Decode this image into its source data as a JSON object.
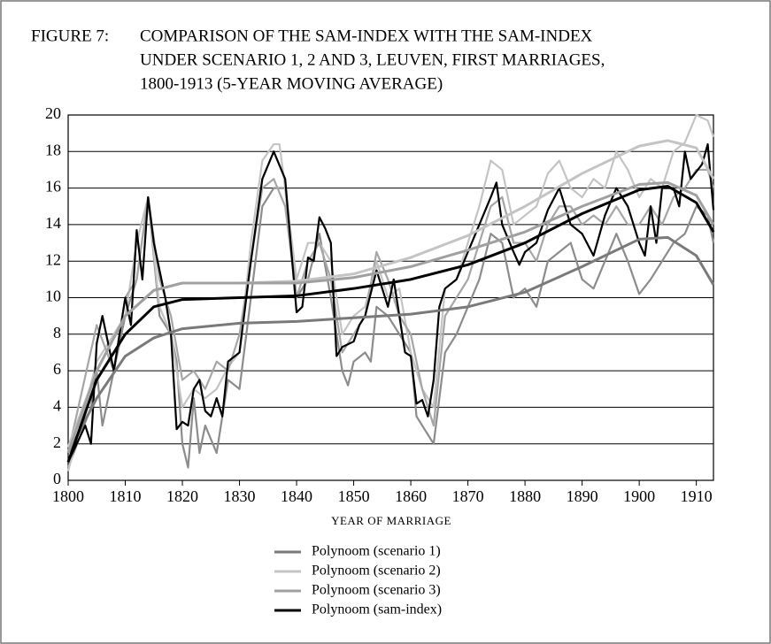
{
  "chart_data": {
    "type": "line",
    "figure_label": "FIGURE 7:",
    "title": [
      "COMPARISON OF THE SAM-INDEX WITH THE SAM-INDEX",
      "UNDER SCENARIO 1, 2 AND 3, LEUVEN, FIRST MARRIAGES,",
      "1800-1913 (5-YEAR MOVING AVERAGE)"
    ],
    "xlabel": "YEAR OF MARRIAGE",
    "xlim": [
      1800,
      1913
    ],
    "xticks": [
      1800,
      1810,
      1820,
      1830,
      1840,
      1850,
      1860,
      1870,
      1880,
      1890,
      1900,
      1910
    ],
    "ylim": [
      0,
      20
    ],
    "yticks": [
      0,
      2,
      4,
      6,
      8,
      10,
      12,
      14,
      16,
      18,
      20
    ],
    "grid": true,
    "series": [
      {
        "color": "#8c8c8c",
        "x": [
          1800,
          1804,
          1805,
          1806,
          1808,
          1810,
          1812,
          1814,
          1816,
          1818,
          1819,
          1820,
          1821,
          1822,
          1823,
          1824,
          1826,
          1828,
          1830,
          1832,
          1834,
          1836,
          1838,
          1840,
          1842,
          1844,
          1846,
          1848,
          1849,
          1850,
          1852,
          1853,
          1854,
          1856,
          1858,
          1860,
          1861,
          1862,
          1864,
          1866,
          1868,
          1870,
          1872,
          1874,
          1876,
          1878,
          1880,
          1882,
          1884,
          1886,
          1888,
          1890,
          1892,
          1894,
          1896,
          1898,
          1900,
          1902,
          1904,
          1906,
          1908,
          1910,
          1912,
          1913
        ],
        "values": [
          0.7,
          4,
          6,
          3,
          6,
          9,
          11,
          15.5,
          9,
          8,
          6.5,
          2,
          0.7,
          4.5,
          1.5,
          3,
          1.5,
          5.5,
          5,
          10,
          15,
          16,
          16,
          10,
          11,
          13.5,
          10,
          6,
          5.2,
          6.5,
          7,
          6.5,
          9.5,
          9,
          8,
          7,
          3.5,
          3,
          2,
          7,
          8,
          9.5,
          11,
          13.5,
          13,
          10,
          10.5,
          9.5,
          12,
          12.5,
          13,
          11,
          10.5,
          12,
          13.5,
          12,
          10.2,
          11,
          12,
          13,
          13.5,
          15,
          14.5,
          13
        ]
      },
      {
        "color": "#c4c4c4",
        "x": [
          1800,
          1805,
          1810,
          1812,
          1814,
          1816,
          1818,
          1820,
          1822,
          1824,
          1826,
          1828,
          1830,
          1832,
          1834,
          1836,
          1837,
          1838,
          1840,
          1842,
          1844,
          1846,
          1848,
          1850,
          1852,
          1854,
          1856,
          1858,
          1860,
          1862,
          1864,
          1866,
          1868,
          1870,
          1872,
          1874,
          1876,
          1878,
          1880,
          1882,
          1884,
          1886,
          1888,
          1890,
          1892,
          1894,
          1896,
          1898,
          1900,
          1902,
          1904,
          1906,
          1908,
          1910,
          1912,
          1913
        ],
        "values": [
          0.5,
          6.5,
          9,
          13,
          15.5,
          9.5,
          8,
          4,
          5,
          4.5,
          5,
          6.2,
          7,
          13,
          17.5,
          18.4,
          18.4,
          16,
          11,
          13,
          13,
          12,
          8,
          9,
          9.5,
          12,
          10,
          10.5,
          7,
          5,
          4,
          10.5,
          11,
          13,
          15,
          17.5,
          17,
          14,
          14.5,
          15,
          16.8,
          17.5,
          16,
          15.5,
          16.5,
          16,
          18,
          17,
          15.5,
          16.5,
          16,
          18,
          18.5,
          20,
          19.7,
          18.8
        ]
      },
      {
        "color": "#a6a6a6",
        "x": [
          1800,
          1805,
          1808,
          1810,
          1812,
          1814,
          1816,
          1818,
          1820,
          1822,
          1824,
          1826,
          1828,
          1830,
          1832,
          1834,
          1836,
          1838,
          1840,
          1842,
          1844,
          1846,
          1848,
          1850,
          1852,
          1854,
          1856,
          1858,
          1860,
          1862,
          1864,
          1866,
          1868,
          1870,
          1872,
          1874,
          1876,
          1878,
          1880,
          1882,
          1884,
          1886,
          1888,
          1890,
          1892,
          1894,
          1896,
          1898,
          1900,
          1902,
          1904,
          1906,
          1908,
          1910,
          1912,
          1913
        ],
        "values": [
          1.5,
          8.5,
          6,
          10,
          11,
          15.5,
          11,
          9,
          5.5,
          6,
          5,
          6.5,
          6,
          8,
          12,
          16,
          16.5,
          15,
          10,
          12,
          13,
          11,
          7,
          8,
          9,
          12.5,
          11,
          9,
          8,
          5,
          3,
          9,
          10,
          11,
          13,
          15,
          15.5,
          13,
          13,
          12,
          14,
          15,
          15,
          14,
          14.5,
          14,
          15,
          14,
          14,
          15,
          14,
          15.5,
          16,
          17,
          17,
          16
        ]
      },
      {
        "color": "#000000",
        "x": [
          1800,
          1803,
          1804,
          1805,
          1806,
          1808,
          1810,
          1811,
          1812,
          1813,
          1814,
          1815,
          1817,
          1818,
          1819,
          1820,
          1821,
          1822,
          1823,
          1824,
          1825,
          1826,
          1827,
          1828,
          1830,
          1832,
          1834,
          1836,
          1838,
          1840,
          1841,
          1842,
          1843,
          1844,
          1845,
          1846,
          1847,
          1848,
          1850,
          1851,
          1852,
          1854,
          1856,
          1857,
          1859,
          1860,
          1861,
          1862,
          1863,
          1864,
          1865,
          1866,
          1868,
          1870,
          1872,
          1874,
          1875,
          1876,
          1878,
          1879,
          1880,
          1882,
          1884,
          1886,
          1888,
          1890,
          1892,
          1894,
          1896,
          1898,
          1900,
          1901,
          1902,
          1903,
          1904,
          1906,
          1907,
          1908,
          1909,
          1911,
          1912,
          1913
        ],
        "values": [
          1,
          3,
          2,
          7.5,
          9,
          6,
          10,
          8.5,
          13.7,
          11,
          15.5,
          13,
          10,
          8,
          2.8,
          3.2,
          3,
          5,
          5.5,
          3.8,
          3.5,
          4.5,
          3.5,
          6.5,
          7,
          12,
          16.5,
          18,
          16.5,
          9.2,
          9.5,
          12.2,
          12,
          14.4,
          13.8,
          13,
          6.8,
          7.3,
          7.6,
          8.5,
          9,
          11.5,
          9.5,
          11,
          7,
          6.8,
          4.2,
          4.4,
          3.5,
          5.5,
          9.5,
          10.5,
          11,
          12.5,
          14,
          15.5,
          16.3,
          14,
          12.5,
          11.8,
          12.5,
          13,
          14.8,
          16,
          14,
          13.5,
          12.3,
          14.5,
          16,
          15,
          13,
          12.3,
          15,
          13,
          16,
          16,
          15,
          18,
          16.5,
          17.3,
          18.4,
          14.8
        ]
      },
      {
        "name": "Polynoom (scenario 1)",
        "color": "#7a7a7a",
        "x": [
          1800,
          1805,
          1810,
          1815,
          1820,
          1830,
          1840,
          1850,
          1860,
          1870,
          1880,
          1890,
          1900,
          1905,
          1910,
          1913
        ],
        "values": [
          1.5,
          4.5,
          6.8,
          7.8,
          8.3,
          8.6,
          8.7,
          8.9,
          9.1,
          9.5,
          10.3,
          11.7,
          13.2,
          13.3,
          12.3,
          10.7
        ]
      },
      {
        "name": "Polynoom (scenario 2)",
        "color": "#c4c4c4",
        "x": [
          1800,
          1805,
          1810,
          1815,
          1820,
          1830,
          1840,
          1850,
          1860,
          1870,
          1880,
          1890,
          1900,
          1905,
          1910,
          1913
        ],
        "values": [
          1.8,
          6,
          9,
          10.4,
          10.8,
          10.8,
          10.9,
          11.3,
          12.2,
          13.4,
          15,
          16.8,
          18.3,
          18.6,
          18.2,
          16.5
        ]
      },
      {
        "name": "Polynoom (scenario 3)",
        "color": "#a0a0a0",
        "x": [
          1800,
          1805,
          1810,
          1815,
          1820,
          1830,
          1840,
          1850,
          1860,
          1870,
          1880,
          1890,
          1900,
          1905,
          1910,
          1913
        ],
        "values": [
          1.5,
          6,
          9,
          10.4,
          10.8,
          10.8,
          10.8,
          11.1,
          11.7,
          12.6,
          13.6,
          15,
          16.2,
          16.3,
          15.6,
          14
        ]
      },
      {
        "name": "Polynoom (sam-index)",
        "color": "#000000",
        "x": [
          1800,
          1805,
          1810,
          1815,
          1820,
          1830,
          1840,
          1850,
          1860,
          1870,
          1880,
          1890,
          1900,
          1905,
          1910,
          1913
        ],
        "values": [
          1,
          5.5,
          8,
          9.5,
          9.9,
          10,
          10.1,
          10.5,
          11,
          11.8,
          13,
          14.6,
          15.9,
          16.1,
          15.2,
          13.6
        ]
      }
    ]
  }
}
